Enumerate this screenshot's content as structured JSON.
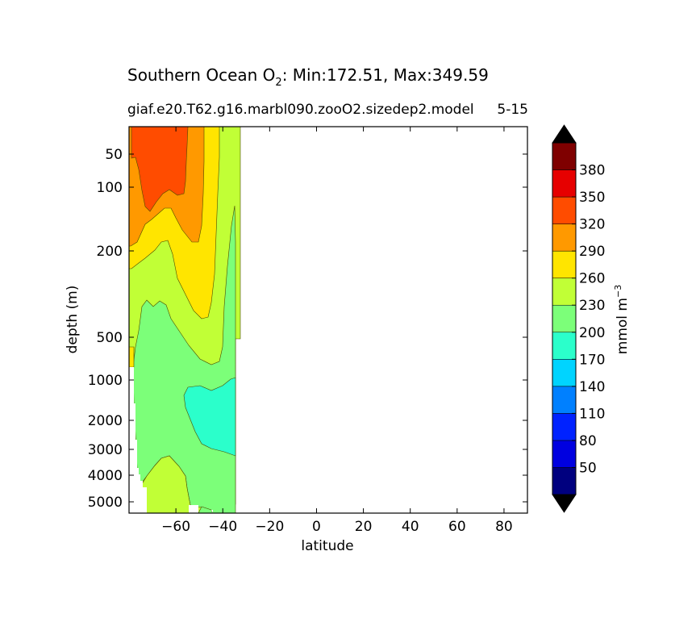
{
  "chart_data": {
    "type": "contourf",
    "title_main": "Southern Ocean O",
    "title_sub": "2",
    "title_rest": ": Min:172.51, Max:349.59",
    "subtitle_left": "giaf.e20.T62.g16.marbl090.zooO2.sizedep2.model",
    "subtitle_right": "5-15",
    "xlabel": "latitude",
    "ylabel": "depth (m)",
    "xlim": [
      -80,
      90
    ],
    "xticks": [
      -60,
      -40,
      -20,
      0,
      20,
      40,
      60,
      80
    ],
    "xtick_labels": [
      "−60",
      "−40",
      "−20",
      "0",
      "20",
      "40",
      "60",
      "80"
    ],
    "yticks": [
      50,
      100,
      200,
      500,
      1000,
      2000,
      3000,
      4000,
      5000
    ],
    "ytick_labels": [
      "50",
      "100",
      "200",
      "500",
      "1000",
      "2000",
      "3000",
      "4000",
      "5000"
    ],
    "yscale": "depth (stretched, increasing downward)",
    "colorbar": {
      "label": "mmol m",
      "label_sup": "−3",
      "levels": [
        20,
        50,
        80,
        110,
        140,
        170,
        200,
        230,
        260,
        290,
        320,
        350,
        380,
        410
      ],
      "tick_labels": [
        "50",
        "80",
        "110",
        "140",
        "170",
        "200",
        "230",
        "260",
        "290",
        "320",
        "350",
        "380"
      ],
      "colors": [
        "#00007f",
        "#0000e0",
        "#0022ff",
        "#0080ff",
        "#00d4ff",
        "#2bffcb",
        "#7cff79",
        "#c1ff36",
        "#ffe500",
        "#ff9900",
        "#ff4c00",
        "#e60000",
        "#7f0000"
      ],
      "extend": "both",
      "extend_color": "#000000"
    },
    "field_levels": [
      {
        "range": "230-260",
        "color": "#c1ff36"
      },
      {
        "range": "260-290",
        "color": "#ffe500"
      },
      {
        "range": "290-320",
        "color": "#ff9900"
      },
      {
        "range": "320-350",
        "color": "#ff4c00"
      },
      {
        "range": "200-230",
        "color": "#7cff79"
      },
      {
        "range": "170-200",
        "color": "#2bffcb"
      }
    ]
  }
}
